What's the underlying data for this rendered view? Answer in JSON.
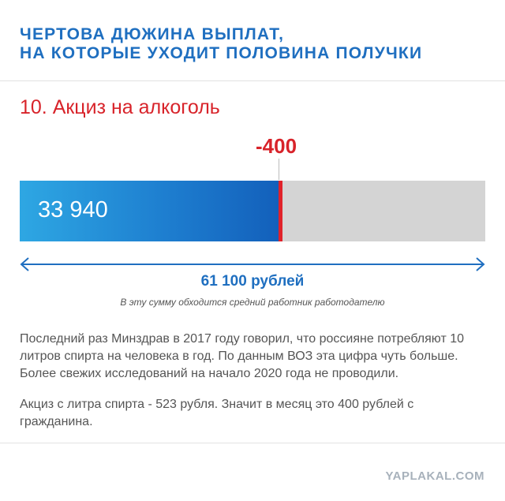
{
  "header": {
    "line1": "ЧЕРТОВА ДЮЖИНА ВЫПЛАТ,",
    "line2": "НА КОТОРЫЕ УХОДИТ ПОЛОВИНА ПОЛУЧКИ"
  },
  "section": {
    "title": "10. Акциз на алкоголь"
  },
  "bar": {
    "main_value": 33940,
    "main_label": "33 940",
    "alcohol_value": 400,
    "alcohol_label": "-400",
    "total_value": 61100,
    "total_label": "61 100 рублей",
    "total_note": "В эту сумму обходится средний работник работодателю",
    "colors": {
      "fill_start": "#2ea7e3",
      "fill_end": "#1360bb",
      "alcohol": "#e0222a",
      "track": "#d4d4d4"
    }
  },
  "body": {
    "paragraph1": "Последний раз Минздрав в 2017 году говорил, что россияне потребляют 10 литров спирта на человека в год. По данным ВОЗ эта цифра чуть больше. Более свежих исследований на начало 2020 года не проводили.",
    "paragraph2": "Акциз с литра спирта - 523 рубля. Значит в месяц это 400 рублей с гражданина."
  },
  "footer": {
    "watermark": "YAPLAKAL.COM"
  }
}
